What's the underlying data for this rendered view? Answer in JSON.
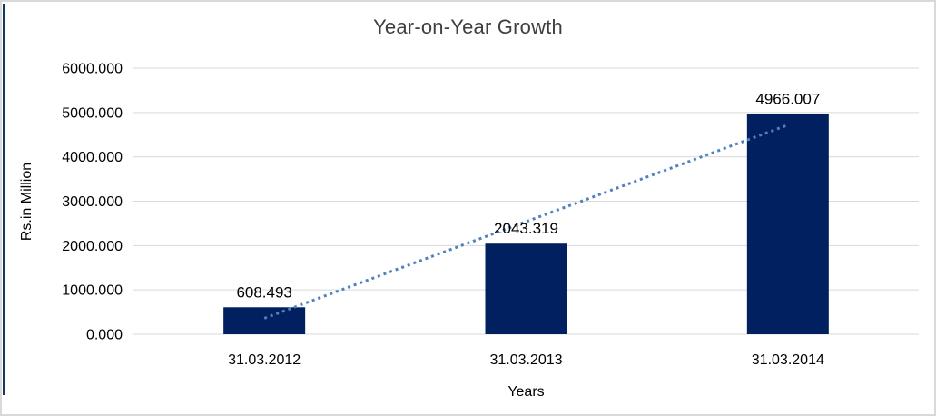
{
  "chart_data": {
    "type": "bar",
    "title": "Year-on-Year Growth",
    "xlabel": "Years",
    "ylabel": "Rs.in Million",
    "categories": [
      "31.03.2012",
      "31.03.2013",
      "31.03.2014"
    ],
    "values": [
      608.493,
      2043.319,
      4966.007
    ],
    "data_labels": [
      "608.493",
      "2043.319",
      "4966.007"
    ],
    "ylim": [
      0,
      6000
    ],
    "ytick_interval": 1000,
    "ytick_labels": [
      "0.000",
      "1000.000",
      "2000.000",
      "3000.000",
      "4000.000",
      "5000.000",
      "6000.000"
    ],
    "grid": true,
    "legend": "none",
    "trendline": {
      "type": "linear",
      "style": "dotted"
    },
    "colors": {
      "bar": "#002060",
      "gridline": "#d9d9d9",
      "text": "#000000",
      "title_text": "#3f3f3f",
      "trendline": "#4f81bd",
      "border": "#d9d9d9",
      "left_accent": "#16365c"
    }
  }
}
